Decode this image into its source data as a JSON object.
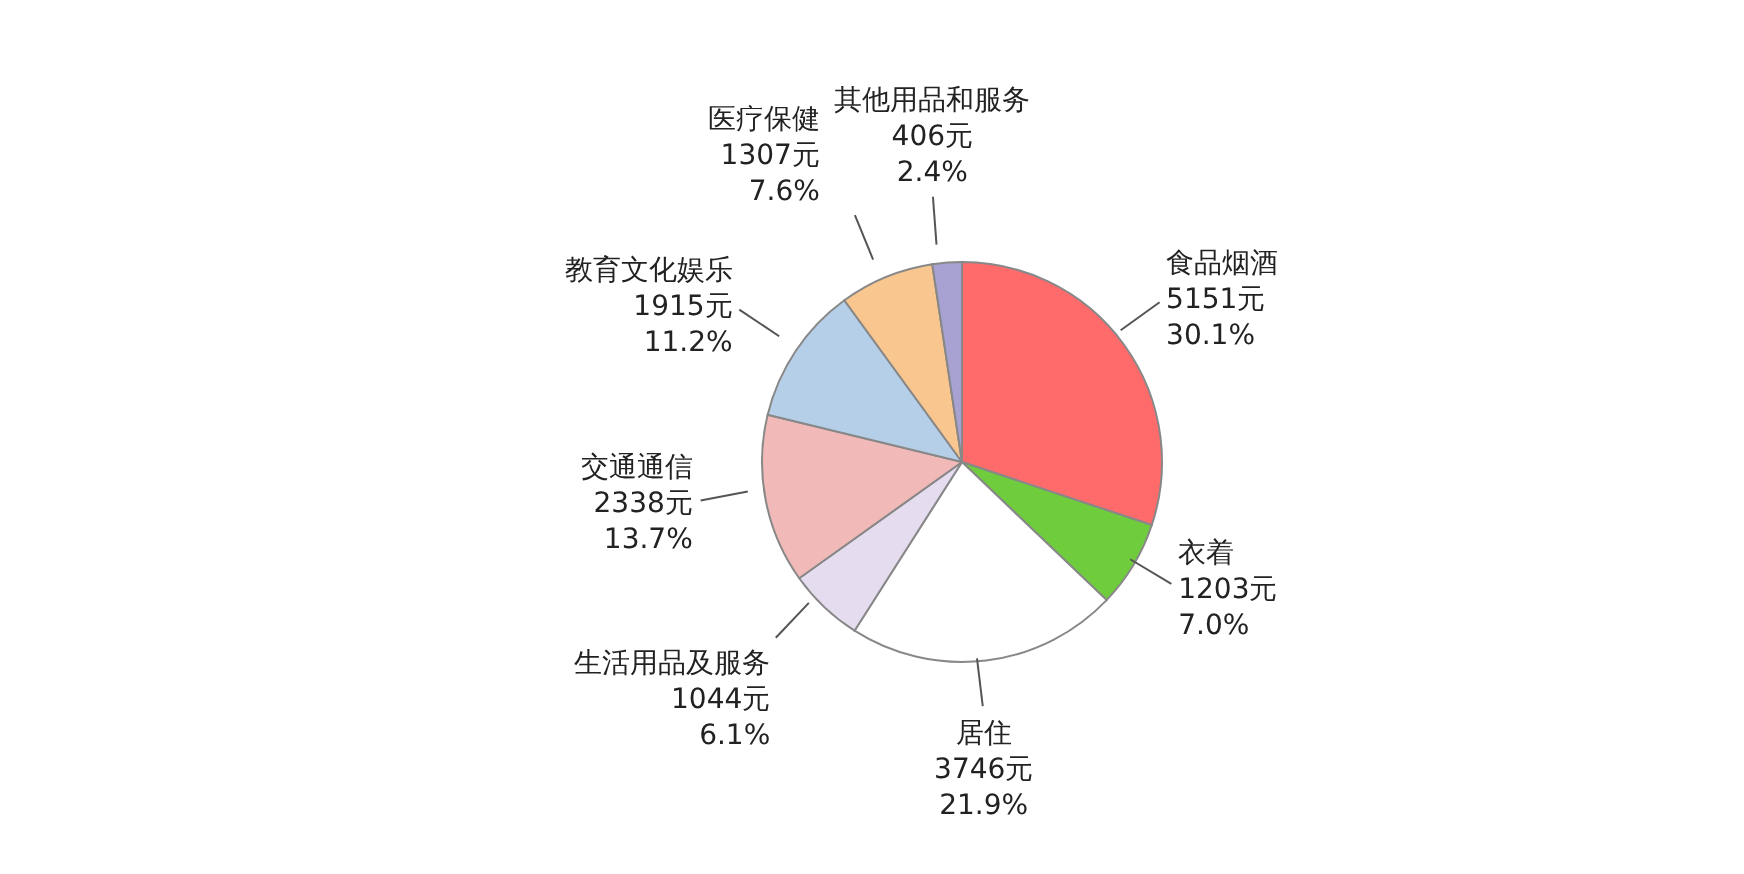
{
  "chart_data": {
    "type": "pie",
    "categories": [
      "食品烟酒",
      "衣着",
      "居住",
      "生活用品及服务",
      "交通通信",
      "教育文化娱乐",
      "医疗保健",
      "其他用品和服务"
    ],
    "values": [
      5151,
      1203,
      3746,
      1044,
      2338,
      1915,
      1307,
      406
    ],
    "value_labels": [
      "5151元\n30.1%",
      "1203元\n7.0%",
      "3746元\n21.9%",
      "1044元\n6.1%",
      "2338元\n13.7%",
      "1915元\n11.2%",
      "1307元\n7.6%",
      "406元\n2.4%"
    ],
    "colors": [
      "#ff6b6b",
      "#6fcc3c",
      "#ffffff",
      "#e6dcf0",
      "#f2b9b9",
      "#b6cfe8",
      "#f8c68e",
      "#a8a2d2"
    ]
  }
}
